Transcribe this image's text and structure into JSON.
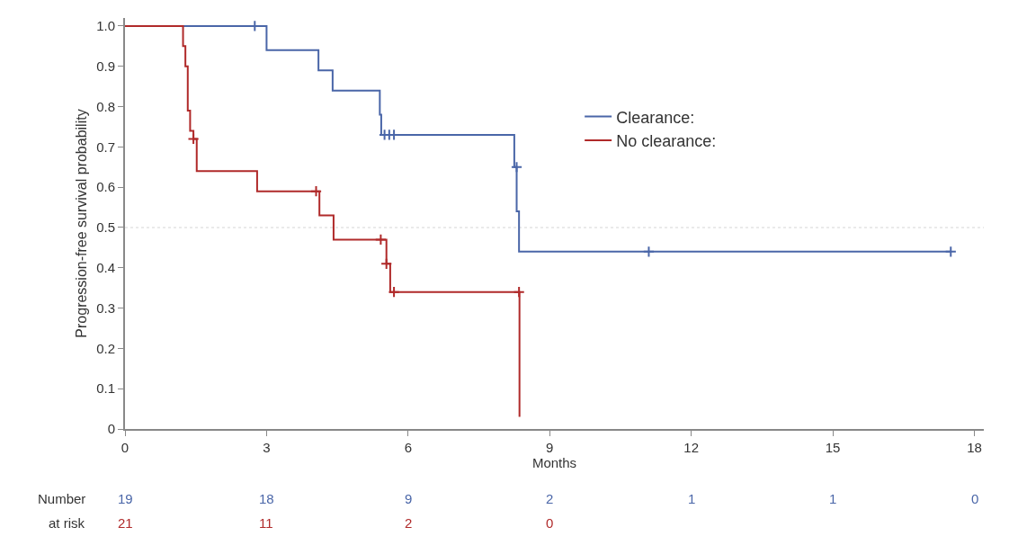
{
  "chart_data": {
    "type": "step",
    "xlabel": "Months",
    "ylabel": "Progression-free survival probability",
    "xlim": [
      0,
      18.2
    ],
    "xticks": [
      0,
      3,
      6,
      9,
      12,
      15,
      18
    ],
    "ylim": [
      0,
      1.02
    ],
    "yticks": [
      {
        "value": 0,
        "label": "0"
      },
      0.1,
      0.2,
      0.3,
      0.4,
      0.5,
      0.6,
      0.7,
      0.8,
      0.9,
      {
        "value": 1,
        "label": "1.0"
      }
    ],
    "grid": false,
    "legend": "top right",
    "line_style": "solid",
    "series": [
      {
        "name": "Clearance:",
        "color": "#4a66a8",
        "x": [
          0,
          3.0,
          4.1,
          4.4,
          5.4,
          5.43,
          8.25,
          8.3,
          8.35,
          17.5
        ],
        "values": [
          1.0,
          0.94,
          0.89,
          0.84,
          0.78,
          0.73,
          0.65,
          0.54,
          0.44,
          0.44
        ]
      },
      {
        "name": "No clearance:",
        "color": "#b02a2a",
        "x": [
          0,
          1.23,
          1.28,
          1.33,
          1.38,
          1.45,
          1.52,
          2.8,
          4.12,
          4.42,
          5.54,
          5.62,
          8.35,
          8.36
        ],
        "values": [
          1.0,
          0.95,
          0.9,
          0.79,
          0.74,
          0.72,
          0.64,
          0.59,
          0.53,
          0.47,
          0.41,
          0.34,
          0.34,
          0.03
        ]
      },
      {
        "type": "scatter",
        "marker": "cross",
        "color": "#4a66a8",
        "x": [
          2.75,
          5.5,
          5.6,
          5.7,
          8.3,
          11.1,
          17.5
        ],
        "values": [
          1.0,
          0.73,
          0.73,
          0.73,
          0.65,
          0.44,
          0.44
        ]
      },
      {
        "type": "scatter",
        "marker": "cross",
        "color": "#b02a2a",
        "x": [
          1.45,
          4.05,
          5.42,
          5.54,
          5.7,
          8.35
        ],
        "values": [
          0.72,
          0.59,
          0.47,
          0.41,
          0.34,
          0.34
        ]
      }
    ],
    "ref_lines": [
      {
        "axis": "y",
        "value": 0.5,
        "color": "#e4e4e4",
        "line_style": "dotted"
      }
    ],
    "annotations": [
      "Number",
      "19",
      "18",
      "9",
      "2",
      "1",
      "1",
      "0",
      "at risk",
      "21",
      "11",
      "2",
      "0"
    ]
  }
}
